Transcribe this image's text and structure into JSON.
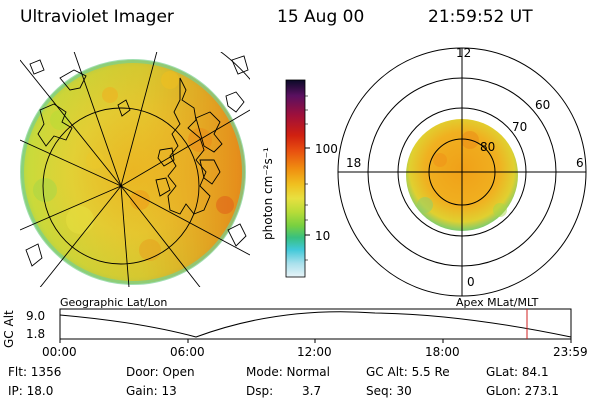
{
  "header": {
    "title": "Ultraviolet Imager",
    "date": "15 Aug 00",
    "time": "21:59:52 UT"
  },
  "left_panel": {
    "caption": "Geographic Lat/Lon"
  },
  "right_panel": {
    "caption": "Apex MLat/MLT",
    "mlt_labels": {
      "top": "12",
      "left": "18",
      "right": "6",
      "bottom": "0"
    },
    "lat_labels": [
      "60",
      "70",
      "80"
    ]
  },
  "colorbar": {
    "label": "photon cm⁻²s⁻¹",
    "ticks": [
      "100",
      "10"
    ],
    "colors": [
      "#0a0a28",
      "#5a1060",
      "#a0103a",
      "#d02010",
      "#e85010",
      "#f08e10",
      "#f0c020",
      "#e8e040",
      "#b8dc38",
      "#78d040",
      "#38c080",
      "#40c8d8",
      "#a8e0ec",
      "#e8f4f8"
    ]
  },
  "timeline": {
    "axis_label": "GC Alt",
    "y_ticks": [
      "9.0",
      "1.8"
    ],
    "x_ticks": [
      "00:00",
      "06:00",
      "12:00",
      "18:00",
      "23:59"
    ],
    "marker_color": "#d02020"
  },
  "status": {
    "row1": {
      "flt": "Flt:  1356",
      "door": "Door:  Open",
      "mode": "Mode:  Normal",
      "gcalt": "GC Alt:  5.5 Re",
      "glat": "GLat:   84.1"
    },
    "row2": {
      "ip": "IP:  18.0",
      "gain": "Gain:  13",
      "dsp_label": "Dsp:",
      "dsp_value": "3.7",
      "seq": "Seq:  30",
      "glon": "GLon:  273.1"
    }
  }
}
